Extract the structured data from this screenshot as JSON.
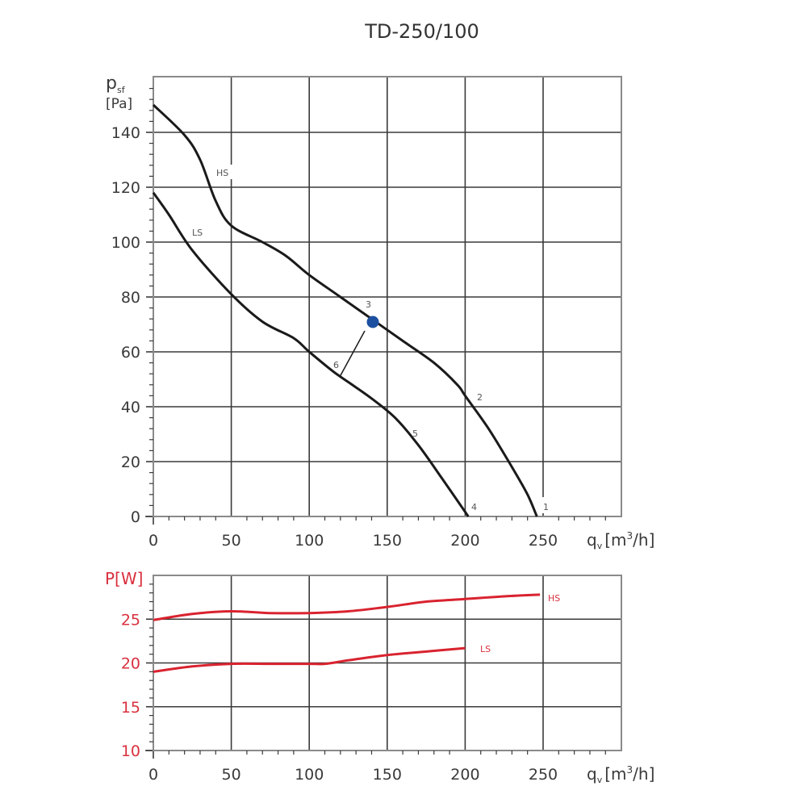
{
  "chart_data": [
    {
      "type": "line",
      "title": "TD-250/100",
      "xlabel": "q_v [m3/h]",
      "ylabel": "p_sf [Pa]",
      "xlim": [
        0,
        300
      ],
      "ylim": [
        0,
        160
      ],
      "x_ticks": [
        0,
        50,
        100,
        150,
        200,
        250
      ],
      "y_ticks": [
        0,
        20,
        40,
        60,
        80,
        100,
        120,
        140
      ],
      "grid": true,
      "series": [
        {
          "name": "HS",
          "x": [
            0,
            20,
            30,
            40,
            50,
            70,
            85,
            100,
            120,
            140,
            160,
            180,
            195,
            200,
            215,
            230,
            240,
            246
          ],
          "y": [
            150,
            139,
            130,
            115,
            106,
            100,
            95,
            88,
            80,
            72,
            64,
            56,
            48,
            44,
            32,
            18,
            8,
            0
          ]
        },
        {
          "name": "LS",
          "x": [
            0,
            10,
            25,
            50,
            70,
            90,
            100,
            115,
            125,
            140,
            155,
            170,
            185,
            202
          ],
          "y": [
            118,
            110,
            97,
            81,
            71,
            65,
            60,
            53,
            49,
            43,
            36,
            26,
            14,
            0
          ]
        }
      ],
      "annotations": [
        {
          "label": "1",
          "x": 248,
          "y": 0
        },
        {
          "label": "2",
          "x": 203,
          "y": 44
        },
        {
          "label": "3",
          "x": 140,
          "y": 71,
          "marker": "operating-point",
          "color": "#1c4fa0"
        },
        {
          "label": "4",
          "x": 204,
          "y": 0
        },
        {
          "label": "5",
          "x": 167,
          "y": 30
        },
        {
          "label": "6",
          "x": 118,
          "y": 53
        },
        {
          "label": "HS",
          "x": 46,
          "y": 125
        },
        {
          "label": "LS",
          "x": 30,
          "y": 103
        }
      ]
    },
    {
      "type": "line",
      "title": "",
      "xlabel": "q_v [m3/h]",
      "ylabel": "P[W]",
      "xlim": [
        0,
        300
      ],
      "ylim": [
        10,
        30
      ],
      "x_ticks": [
        0,
        50,
        100,
        150,
        200,
        250
      ],
      "y_ticks": [
        10,
        15,
        20,
        25
      ],
      "grid": true,
      "series": [
        {
          "name": "HS",
          "x": [
            0,
            25,
            50,
            75,
            100,
            125,
            150,
            175,
            200,
            225,
            248
          ],
          "y": [
            24.9,
            25.6,
            25.9,
            25.7,
            25.7,
            25.9,
            26.4,
            27.0,
            27.3,
            27.6,
            27.8
          ]
        },
        {
          "name": "LS",
          "x": [
            0,
            25,
            50,
            75,
            100,
            110,
            125,
            150,
            175,
            200
          ],
          "y": [
            19.0,
            19.6,
            19.9,
            19.9,
            19.9,
            19.9,
            20.3,
            20.9,
            21.3,
            21.7
          ]
        }
      ]
    }
  ],
  "labels": {
    "title": "TD-250/100",
    "main_y_label_sym": "p",
    "main_y_label_sub": "sf",
    "main_y_unit": "[Pa]",
    "power_y_label": "P[W]",
    "x_label_sym": "q",
    "x_label_sub": "v",
    "x_label_unit_pre": "[m",
    "x_label_unit_sup": "3",
    "x_label_unit_post": "/h]",
    "main_x_ticks": [
      "0",
      "50",
      "100",
      "150",
      "200",
      "250"
    ],
    "main_y_ticks": [
      "0",
      "20",
      "40",
      "60",
      "80",
      "100",
      "120",
      "140"
    ],
    "power_x_ticks": [
      "0",
      "50",
      "100",
      "150",
      "200",
      "250"
    ],
    "power_y_ticks": [
      "10",
      "15",
      "20",
      "25"
    ],
    "pt1": "1",
    "pt2": "2",
    "pt3": "3",
    "pt4": "4",
    "pt5": "5",
    "pt6": "6",
    "hs": "HS",
    "ls": "LS"
  },
  "colors": {
    "curve": "#1a1a1a",
    "power_curve": "#d9232f",
    "operating_point": "#1c4fa0",
    "power_text": "#d9303e"
  }
}
